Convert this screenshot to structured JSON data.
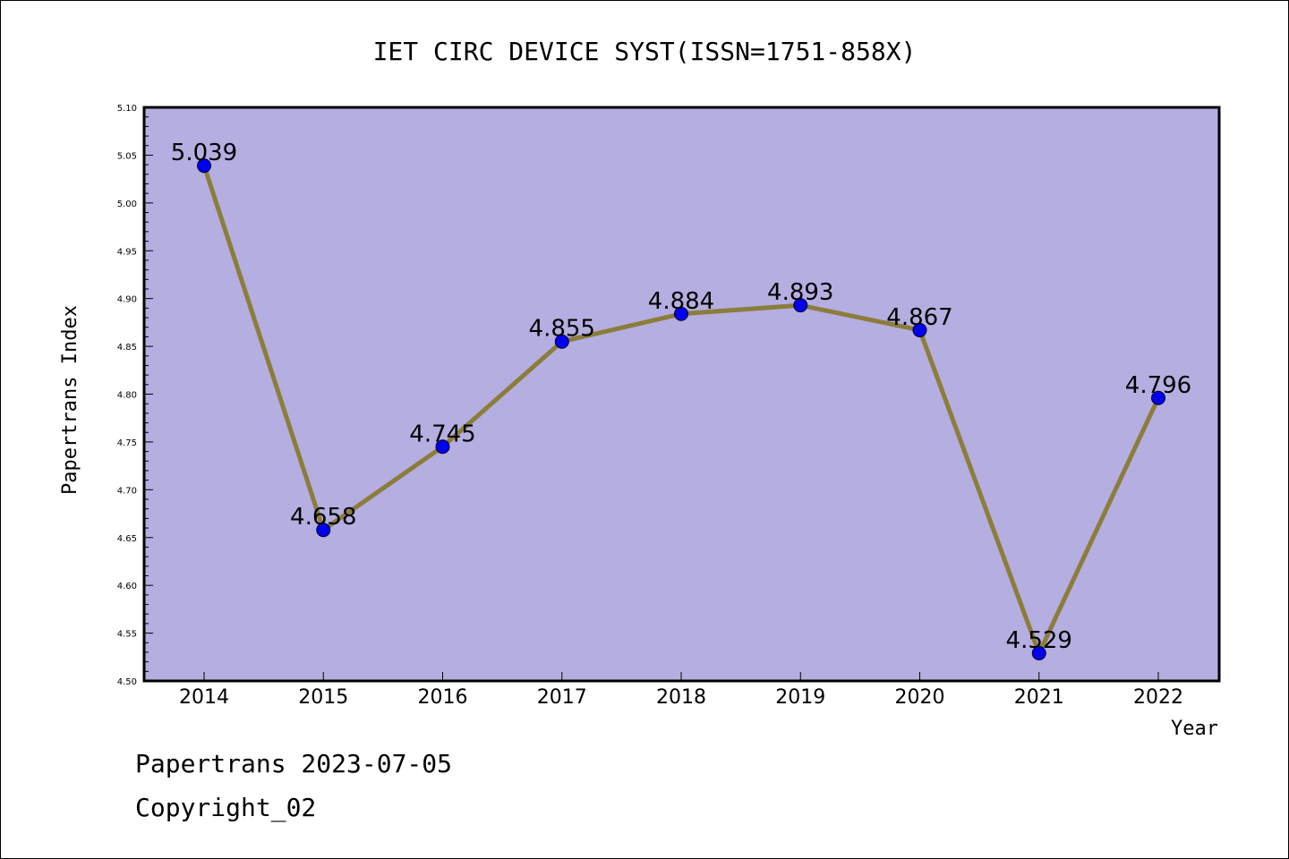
{
  "chart_data": {
    "type": "line",
    "title": "IET CIRC DEVICE SYST(ISSN=1751-858X)",
    "xlabel": "Year",
    "ylabel": "Papertrans Index",
    "categories": [
      "2014",
      "2015",
      "2016",
      "2017",
      "2018",
      "2019",
      "2020",
      "2021",
      "2022"
    ],
    "values": [
      5.039,
      4.658,
      4.745,
      4.855,
      4.884,
      4.893,
      4.867,
      4.529,
      4.796
    ],
    "data_labels": [
      "5.039",
      "4.658",
      "4.745",
      "4.855",
      "4.884",
      "4.893",
      "4.867",
      "4.529",
      "4.796"
    ],
    "ylim": [
      4.5,
      5.1
    ],
    "yticks": [
      "4.50",
      "4.55",
      "4.60",
      "4.65",
      "4.70",
      "4.75",
      "4.80",
      "4.85",
      "4.90",
      "4.95",
      "5.00",
      "5.05",
      "5.10"
    ],
    "grid": false,
    "colors": {
      "plot_background": "#b5aee1",
      "line": "#8b7d3a",
      "marker": "#0000ee"
    }
  },
  "footer": {
    "line1": "Papertrans 2023-07-05",
    "line2": "Copyright_02"
  }
}
